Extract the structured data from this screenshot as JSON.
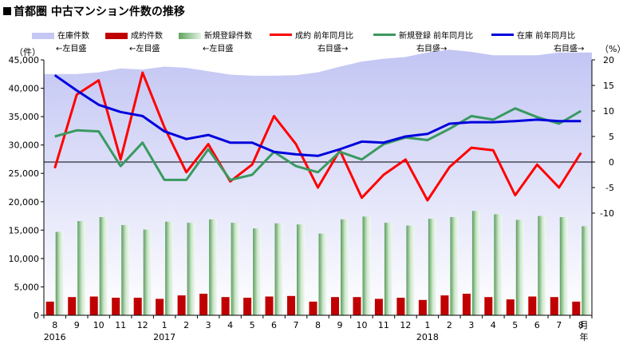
{
  "title": "首都圏 中古マンション件数の推移",
  "legend": [
    {
      "label": "在庫件数",
      "sub": "←左目盛",
      "type": "area",
      "color": "#c5c8f4"
    },
    {
      "label": "成約件数",
      "sub": "←左目盛",
      "type": "bar",
      "color": "#c00000"
    },
    {
      "label": "新規登録件数",
      "sub": "←左目盛",
      "type": "bar",
      "color": "#9ac79a"
    },
    {
      "label": "成約 前年同月比",
      "sub": "右目盛→",
      "type": "line",
      "color": "#ff0000"
    },
    {
      "label": "新規登録 前年同月比",
      "sub": "右目盛→",
      "type": "line",
      "color": "#3a9a60"
    },
    {
      "label": "在庫 前年同月比",
      "sub": "右目盛→",
      "type": "line",
      "color": "#0000dd"
    }
  ],
  "chart_data": {
    "type": "bar",
    "categories": [
      "8",
      "9",
      "10",
      "11",
      "12",
      "1",
      "2",
      "3",
      "4",
      "5",
      "6",
      "7",
      "8",
      "9",
      "10",
      "11",
      "12",
      "1",
      "2",
      "3",
      "4",
      "5",
      "6",
      "7",
      "8"
    ],
    "year_labels": [
      {
        "label": "2016",
        "index": 0
      },
      {
        "label": "2017",
        "index": 5
      },
      {
        "label": "2018",
        "index": 17
      }
    ],
    "x_unit_month": "月",
    "x_unit_year": "年",
    "left_axis": {
      "unit": "（件）",
      "min": 0,
      "max": 45000,
      "step": 5000,
      "tick_labels": [
        "0",
        "5,000",
        "10,000",
        "15,000",
        "20,000",
        "25,000",
        "30,000",
        "35,000",
        "40,000",
        "45,000"
      ]
    },
    "right_axis": {
      "unit": "（%）",
      "min": -30,
      "max": 20,
      "ticks": [
        20,
        15,
        10,
        5,
        0,
        -5,
        -10
      ],
      "tick_labels": [
        "20",
        "15",
        "10",
        "5",
        "0",
        "-5",
        "-10"
      ]
    },
    "series": [
      {
        "name": "在庫件数",
        "axis": "left",
        "type": "area",
        "values": [
          42500,
          42500,
          42800,
          43500,
          43300,
          43800,
          43600,
          43000,
          42400,
          42200,
          42200,
          42300,
          42800,
          43800,
          44700,
          45200,
          45500,
          46300,
          46800,
          46400,
          45800,
          45800,
          45800,
          46300,
          46300
        ]
      },
      {
        "name": "成約件数",
        "axis": "left",
        "type": "bar",
        "values": [
          2400,
          3200,
          3300,
          3100,
          3100,
          2900,
          3500,
          3800,
          3200,
          3100,
          3300,
          3400,
          2400,
          3200,
          3200,
          2900,
          3100,
          2700,
          3500,
          3800,
          3200,
          2800,
          3300,
          3200,
          2400
        ]
      },
      {
        "name": "新規登録件数",
        "axis": "left",
        "type": "bar",
        "values": [
          14700,
          16600,
          17300,
          15900,
          15100,
          16500,
          16300,
          16900,
          16300,
          15300,
          16200,
          16000,
          14400,
          16900,
          17400,
          16300,
          15800,
          17000,
          17300,
          18400,
          17800,
          16800,
          17500,
          17300,
          15700
        ]
      },
      {
        "name": "成約 前年同月比",
        "axis": "right",
        "type": "line",
        "values": [
          -1.2,
          13.2,
          16.0,
          0.5,
          17.5,
          6.8,
          -2.0,
          3.5,
          -3.8,
          -0.5,
          9.0,
          3.5,
          -5.0,
          2.3,
          -7.0,
          -2.5,
          0.5,
          -7.5,
          -1.0,
          2.8,
          2.3,
          -6.5,
          -0.5,
          -5.0,
          1.8
        ]
      },
      {
        "name": "新規登録 前年同月比",
        "axis": "right",
        "type": "line",
        "values": [
          5.0,
          6.2,
          6.0,
          -0.8,
          3.8,
          -3.5,
          -3.5,
          2.5,
          -3.5,
          -2.5,
          2.0,
          -0.8,
          -2.0,
          2.0,
          0.5,
          3.5,
          4.8,
          4.3,
          6.5,
          9.0,
          8.3,
          10.5,
          8.8,
          7.5,
          10.0
        ]
      },
      {
        "name": "在庫 前年同月比",
        "axis": "right",
        "type": "line",
        "values": [
          17.0,
          14.0,
          11.2,
          9.8,
          9.0,
          6.0,
          4.5,
          5.3,
          3.8,
          3.8,
          2.0,
          1.5,
          1.2,
          2.5,
          4.0,
          3.8,
          5.0,
          5.5,
          7.5,
          7.8,
          7.8,
          8.0,
          8.3,
          8.0,
          8.0
        ]
      }
    ]
  }
}
